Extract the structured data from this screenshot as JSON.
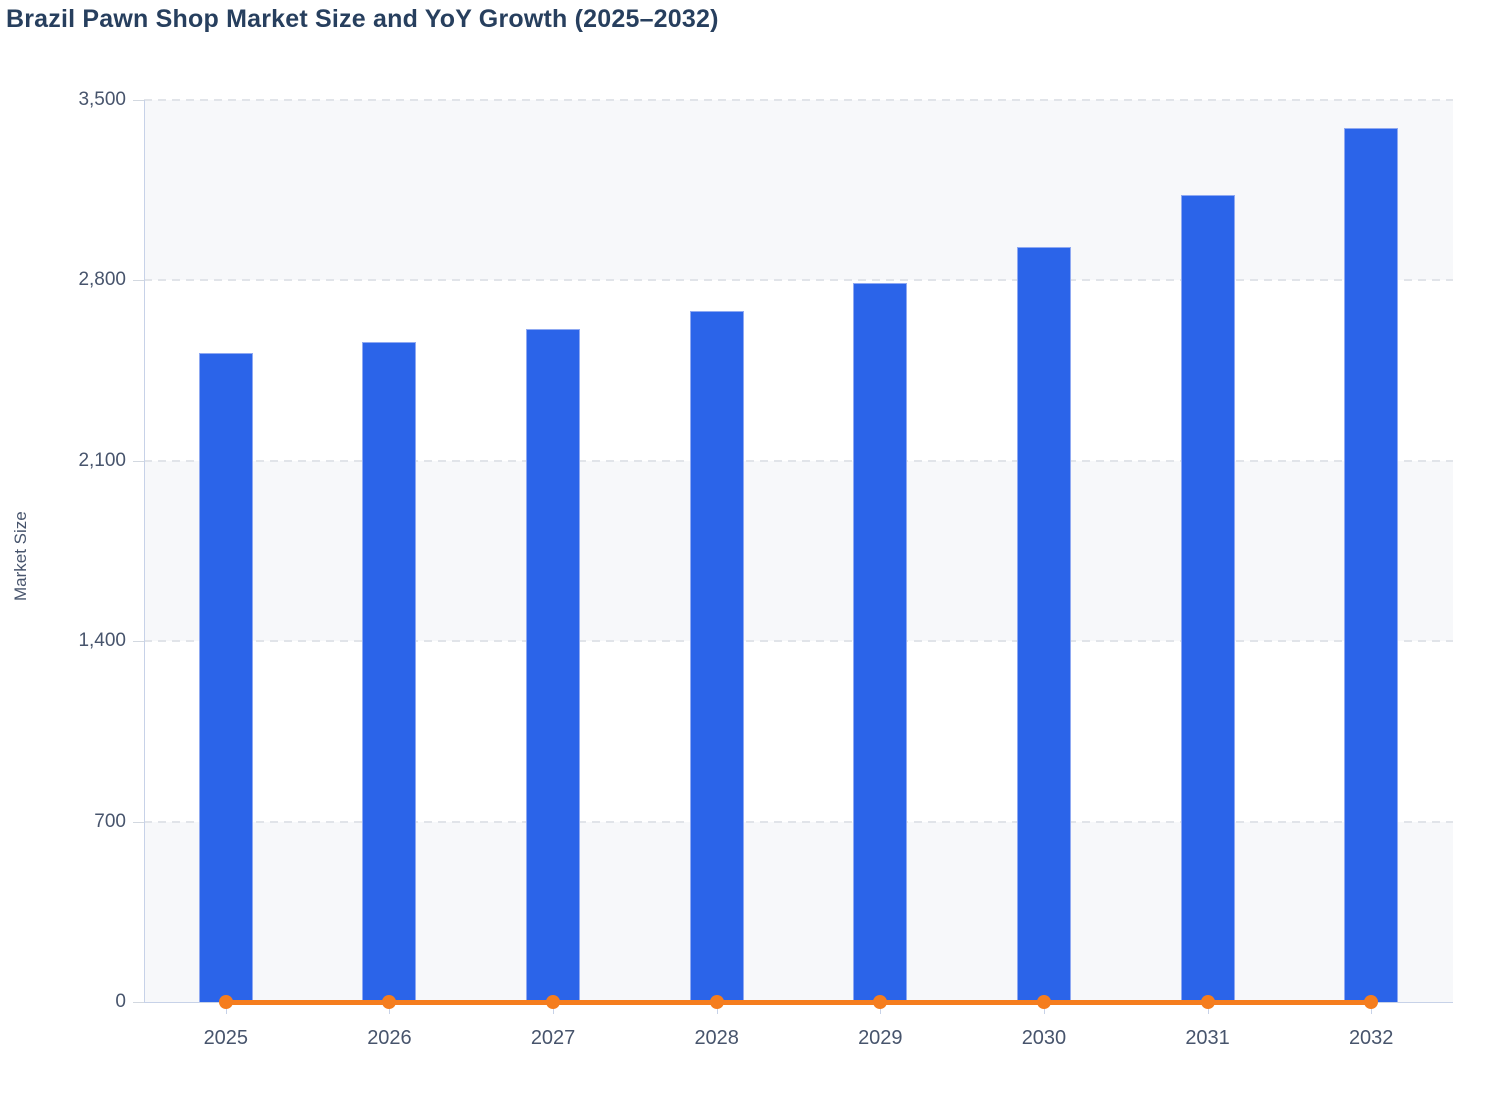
{
  "chart_data": {
    "type": "bar",
    "title": "Brazil Pawn Shop Market Size and YoY Growth (2025–2032)",
    "subtitle": "",
    "xlabel": "",
    "ylabel": "Market Size",
    "ylim": [
      0,
      3500
    ],
    "yticks": {
      "values": [
        0,
        700,
        1400,
        2100,
        2800,
        3500
      ],
      "labels": [
        "0",
        "700",
        "1,400",
        "2,100",
        "2,800",
        "3,500"
      ]
    },
    "categories": [
      "2025",
      "2026",
      "2027",
      "2028",
      "2029",
      "2030",
      "2031",
      "2032"
    ],
    "series": [
      {
        "name": "Market Size",
        "type": "bar",
        "color": "#2b64e9",
        "border_color": "#8fa9f2",
        "values": [
          2520,
          2560,
          2610,
          2680,
          2790,
          2930,
          3130,
          3390
        ]
      },
      {
        "name": "YoY Growth",
        "type": "line",
        "color": "#f57d1e",
        "marker": "circle",
        "values": [
          0,
          0,
          0,
          0,
          0,
          0,
          0,
          0
        ]
      }
    ],
    "grid": "horizontal-dashed",
    "legend_position": "none",
    "plot_band_alternating_fills": [
      "#f7f8fa",
      "#ffffff"
    ]
  },
  "colors": {
    "title": "#273f5e",
    "axis_labels": "#47546c",
    "axis_line": "#c7d2e8",
    "gridline": "#e1e4e9",
    "plot_band": "#f7f8fa",
    "bar_fill": "#2b64e9",
    "bar_border": "#8fa9f2",
    "line_orange": "#f57d1e",
    "background": "#ffffff"
  }
}
